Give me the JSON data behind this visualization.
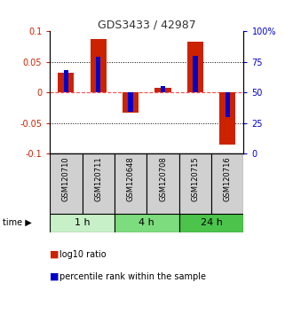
{
  "title": "GDS3433 / 42987",
  "samples": [
    "GSM120710",
    "GSM120711",
    "GSM120648",
    "GSM120708",
    "GSM120715",
    "GSM120716"
  ],
  "log10_ratio": [
    0.033,
    0.088,
    -0.033,
    0.008,
    0.083,
    -0.085
  ],
  "percentile_rank": [
    0.68,
    0.79,
    0.34,
    0.55,
    0.8,
    0.3
  ],
  "time_groups": [
    {
      "label": "1 h",
      "start": 0,
      "end": 2,
      "color": "#c8f0c8"
    },
    {
      "label": "4 h",
      "start": 2,
      "end": 4,
      "color": "#7ddc7d"
    },
    {
      "label": "24 h",
      "start": 4,
      "end": 6,
      "color": "#4cc44c"
    }
  ],
  "ylim": [
    -0.1,
    0.1
  ],
  "yticks_left": [
    -0.1,
    -0.05,
    0,
    0.05,
    0.1
  ],
  "yticks_right": [
    0,
    25,
    50,
    75,
    100
  ],
  "bar_color_red": "#cc2200",
  "bar_color_blue": "#0000cc",
  "left_axis_color": "#cc2200",
  "right_axis_color": "#0000cc",
  "bar_width": 0.5,
  "blue_bar_width": 0.15,
  "sample_bg": "#d0d0d0",
  "legend_red_label": "log10 ratio",
  "legend_blue_label": "percentile rank within the sample"
}
